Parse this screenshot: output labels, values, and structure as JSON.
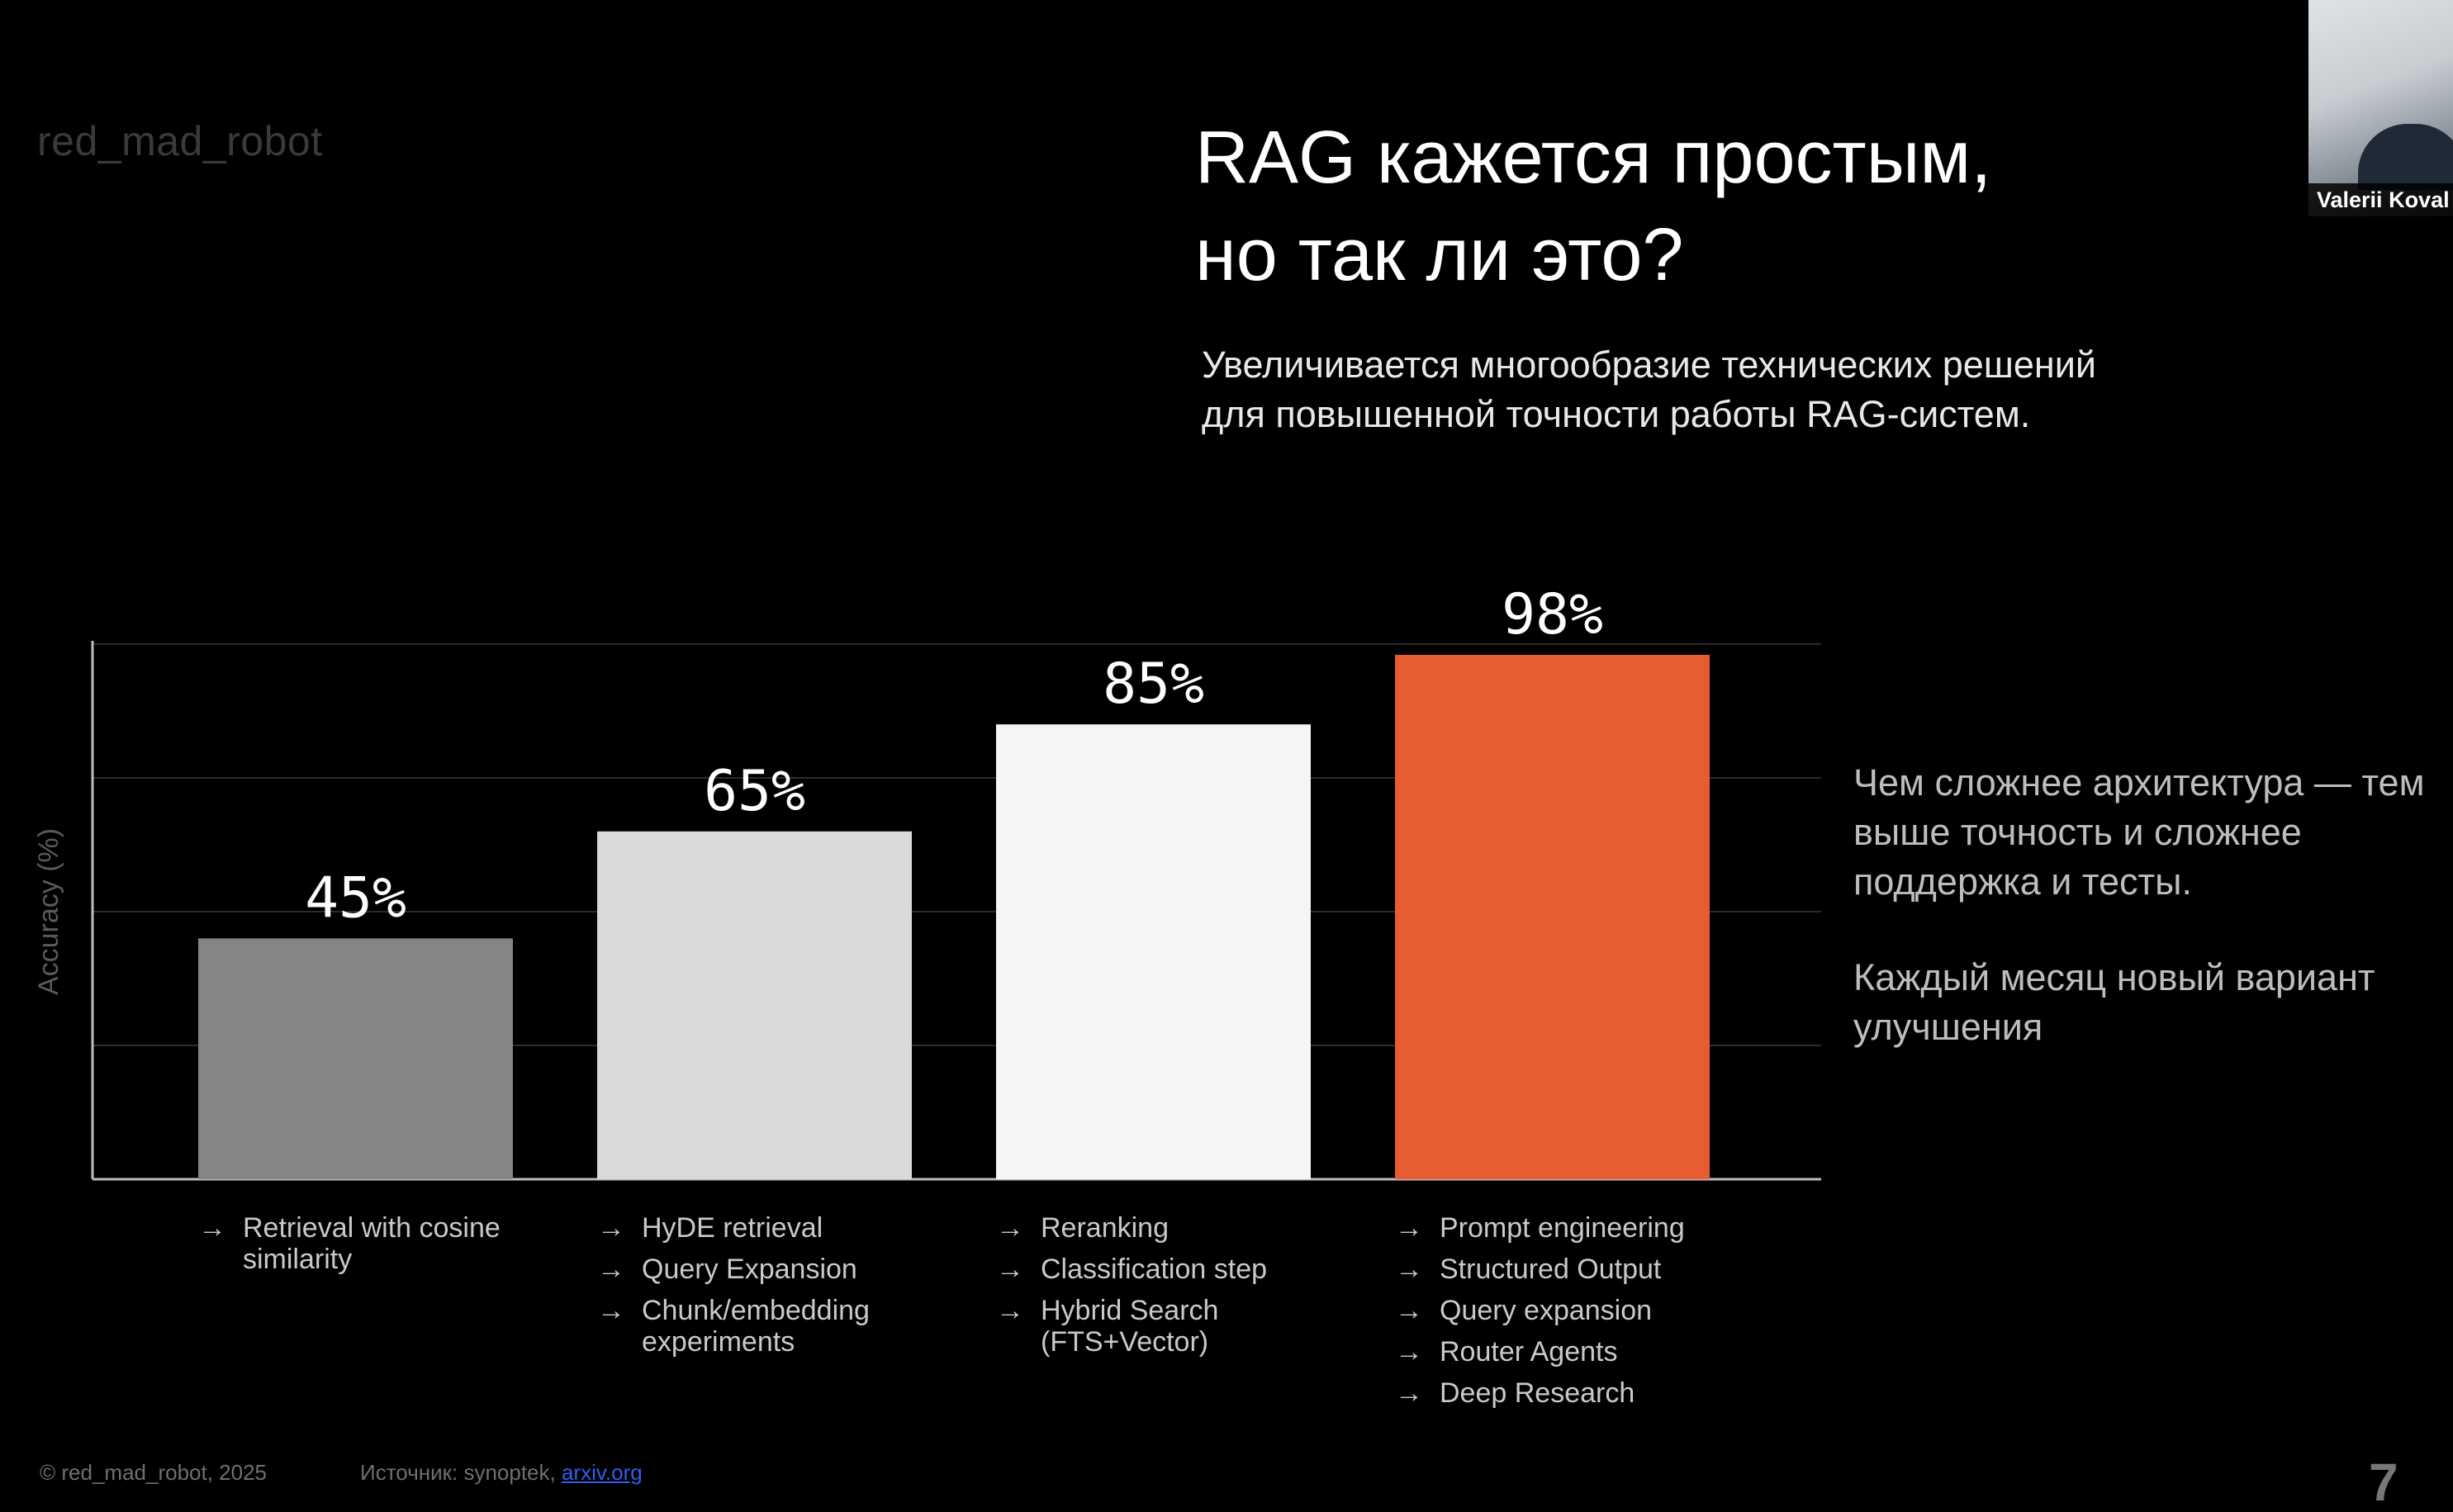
{
  "brand": "red_mad_robot",
  "title_line1": "RAG кажется простым,",
  "title_line2": "но так ли это?",
  "subtitle_line1": "Увеличивается многообразие технических решений",
  "subtitle_line2": "для повышенной точности работы RAG-систем.",
  "video": {
    "participant_name": "Valerii Koval"
  },
  "chart_data": {
    "type": "bar",
    "categories": [
      "Retrieval with cosine similarity",
      "HyDE retrieval / Query Expansion / Chunk/embedding experiments",
      "Reranking / Classification step / Hybrid Search",
      "Prompt engineering / Structured Output / Query expansion / Router Agents / Deep Research"
    ],
    "values": [
      45,
      65,
      85,
      98
    ],
    "value_labels": [
      "45%",
      "65%",
      "85%",
      "98%"
    ],
    "colors": [
      "#858585",
      "#d9d9d9",
      "#f5f5f5",
      "#e85c34"
    ],
    "ylabel": "Accuracy (%)",
    "ylim": [
      0,
      100
    ],
    "grid": true,
    "title": ""
  },
  "groups": [
    {
      "items": [
        "Retrieval with cosine similarity"
      ]
    },
    {
      "items": [
        "HyDE retrieval",
        "Query Expansion",
        "Chunk/embedding experiments"
      ]
    },
    {
      "items": [
        "Reranking",
        "Classification step",
        "Hybrid Search (FTS+Vector)"
      ]
    },
    {
      "items": [
        "Prompt engineering",
        "Structured Output",
        "Query expansion",
        "Router Agents",
        "Deep Research"
      ]
    }
  ],
  "arrow_glyph": "→",
  "side_text_1": "Чем сложнее архитектура — тем выше точность и сложнее поддержка и тесты.",
  "side_text_2": "Каждый месяц новый вариант улучшения",
  "footer": {
    "copyright": "© red_mad_robot, 2025",
    "source_prefix": "Источник: synoptek, ",
    "source_link": "arxiv.org"
  },
  "corner_logo": "7"
}
